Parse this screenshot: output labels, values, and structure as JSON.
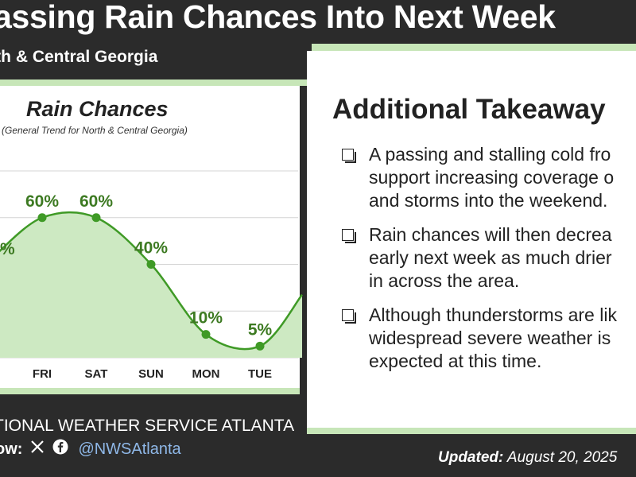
{
  "header": {
    "title": "assing Rain Chances Into Next Week",
    "subtitle": "rth & Central Georgia"
  },
  "chart": {
    "title": "Rain Chances",
    "subtitle": "(General Trend for North & Central Georgia)"
  },
  "chart_data": {
    "type": "area",
    "title": "Rain Chances",
    "subtitle": "(General Trend for North & Central Georgia)",
    "categories": [
      "FRI",
      "SAT",
      "SUN",
      "MON",
      "TUE"
    ],
    "values": [
      60,
      60,
      40,
      10,
      5
    ],
    "value_labels": [
      "60%",
      "60%",
      "40%",
      "10%",
      "5%"
    ],
    "partial_left_label": "%",
    "ylim": [
      0,
      80
    ],
    "grid": true,
    "colors": {
      "line": "#3f9a26",
      "fill": "#cde9c2",
      "point": "#3f9a26",
      "label": "#3d7a22"
    }
  },
  "takeaways": {
    "title": "Additional Takeaway",
    "bullets": [
      {
        "lines": [
          "A passing and stalling cold fro",
          "support increasing coverage o",
          "and storms into the weekend."
        ]
      },
      {
        "lines": [
          "Rain chances will then decrea",
          "early next week as much drier",
          "in across the area."
        ]
      },
      {
        "lines": [
          "Although thunderstorms are lik",
          "widespread severe weather is",
          "expected at this time."
        ]
      }
    ]
  },
  "footer": {
    "org": "TIONAL WEATHER SERVICE ATLANTA",
    "follow_label": "ow:",
    "icons": [
      "x-icon",
      "facebook-icon"
    ],
    "handle": "@NWSAtlanta",
    "updated_label": "Updated:",
    "updated_date": "August 20, 2025"
  }
}
